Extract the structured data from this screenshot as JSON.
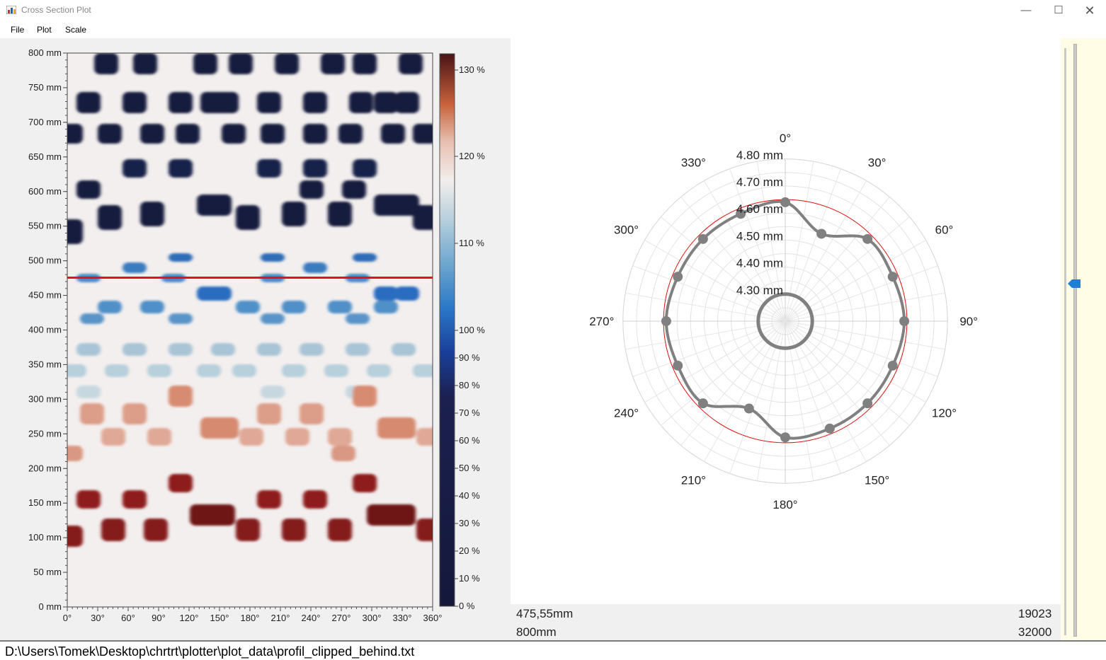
{
  "window": {
    "title": "Cross Section Plot",
    "minimize_icon": "minimize-icon",
    "maximize_icon": "maximize-icon",
    "close_icon": "close-icon",
    "app_icon": "chart-app-icon"
  },
  "menu": {
    "items": [
      "File",
      "Plot",
      "Scale"
    ]
  },
  "heatmap": {
    "y_ticks": [
      "0 mm",
      "50 mm",
      "100 mm",
      "150 mm",
      "200 mm",
      "250 mm",
      "300 mm",
      "350 mm",
      "400 mm",
      "450 mm",
      "500 mm",
      "550 mm",
      "600 mm",
      "650 mm",
      "700 mm",
      "750 mm",
      "800 mm"
    ],
    "x_ticks": [
      "0°",
      "30°",
      "60°",
      "90°",
      "120°",
      "150°",
      "180°",
      "210°",
      "240°",
      "270°",
      "300°",
      "330°",
      "360°"
    ],
    "colorbar_ticks": [
      "0 %",
      "10 %",
      "20 %",
      "30 %",
      "40 %",
      "50 %",
      "60 %",
      "70 %",
      "80 %",
      "90 %",
      "100 %",
      "110 %",
      "120 %",
      "130 %"
    ],
    "selected_height_mm": 475.55,
    "cursor_color": "#e0141c"
  },
  "chart_data": {
    "type": "polar",
    "radial_ticks": [
      "4.30 mm",
      "4.40 mm",
      "4.50 mm",
      "4.60 mm",
      "4.70 mm",
      "4.80 mm"
    ],
    "angle_labels": [
      "0°",
      "30°",
      "60°",
      "90°",
      "120°",
      "150°",
      "180°",
      "210°",
      "240°",
      "270°",
      "300°",
      "330°"
    ],
    "series": [
      {
        "name": "",
        "color": "#808080",
        "points": [
          {
            "angle": 0,
            "r": 4.64
          },
          {
            "angle": 22.5,
            "r": 4.55
          },
          {
            "angle": 45,
            "r": 4.63
          },
          {
            "angle": 67.5,
            "r": 4.63
          },
          {
            "angle": 90,
            "r": 4.64
          },
          {
            "angle": 112.5,
            "r": 4.63
          },
          {
            "angle": 135,
            "r": 4.63
          },
          {
            "angle": 157.5,
            "r": 4.63
          },
          {
            "angle": 180,
            "r": 4.63
          },
          {
            "angle": 202.5,
            "r": 4.55
          },
          {
            "angle": 225,
            "r": 4.63
          },
          {
            "angle": 247.5,
            "r": 4.63
          },
          {
            "angle": 270,
            "r": 4.64
          },
          {
            "angle": 292.5,
            "r": 4.63
          },
          {
            "angle": 315,
            "r": 4.63
          },
          {
            "angle": 337.5,
            "r": 4.63
          }
        ]
      },
      {
        "name": "",
        "color": "#808080",
        "constant_r": 4.3
      },
      {
        "name": "",
        "color": "#e01010",
        "constant_r": 4.65
      }
    ]
  },
  "info": {
    "height_value": "475,55mm",
    "total_height": "800mm",
    "row_index": "19023",
    "row_count": "32000"
  },
  "slider": {
    "accent": "#1e7fd8"
  },
  "status": {
    "path": "D:\\Users\\Tomek\\Desktop\\chrtrt\\plotter\\plot_data\\profil_clipped_behind.txt"
  }
}
